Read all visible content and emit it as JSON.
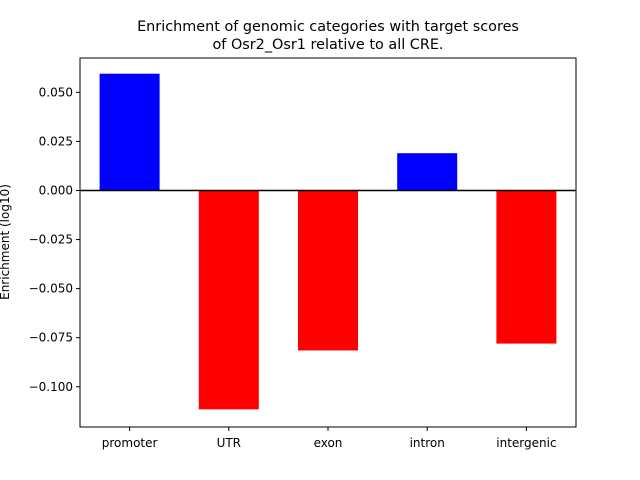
{
  "chart_data": {
    "type": "bar",
    "title_line1": "Enrichment of genomic categories with target scores",
    "title_line2": "of Osr2_Osr1 relative to all CRE.",
    "xlabel": "",
    "ylabel": "Enrichment (log10)",
    "categories": [
      "promoter",
      "UTR",
      "exon",
      "intron",
      "intergenic"
    ],
    "values": [
      0.0595,
      -0.1115,
      -0.0815,
      0.019,
      -0.078
    ],
    "bar_colors": [
      "#0000ff",
      "#ff0000",
      "#ff0000",
      "#0000ff",
      "#ff0000"
    ],
    "positive_color": "#0000ff",
    "negative_color": "#ff0000",
    "ylim": [
      -0.1205,
      0.0675
    ],
    "yticks": [
      0.05,
      0.025,
      0.0,
      -0.025,
      -0.05,
      -0.075,
      -0.1
    ],
    "ytick_labels": [
      "0.050",
      "0.025",
      "0.000",
      "−0.025",
      "−0.050",
      "−0.075",
      "−0.100"
    ],
    "zero_line": true,
    "grid": false
  }
}
